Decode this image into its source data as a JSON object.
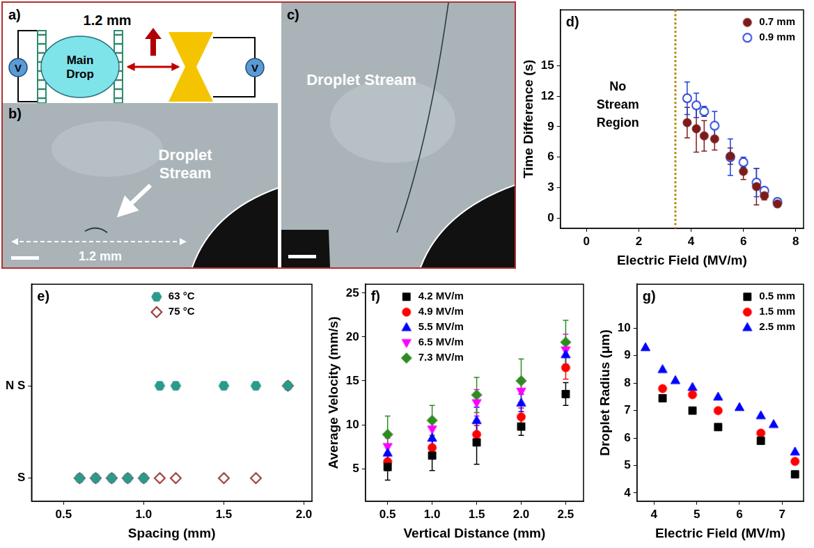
{
  "diagram": {
    "a": {
      "label": "a)",
      "drop": "Main Drop",
      "source": "V",
      "distance": "1.2 mm"
    },
    "b": {
      "label": "b)",
      "stream": "Droplet Stream",
      "gap": "1.2 mm"
    },
    "c": {
      "label": "c)",
      "stream": "Droplet Stream"
    }
  },
  "chart_data": [
    {
      "type": "scatter",
      "title": "d)",
      "x_label": "Electric Field (MV/m)",
      "y_label": "Time Difference (s)",
      "xlim": [
        -1,
        8.3
      ],
      "xticks": [
        0,
        2,
        4,
        6,
        8
      ],
      "ylim": [
        -1,
        20.5
      ],
      "yticks": [
        0,
        3,
        6,
        9,
        12,
        15
      ],
      "grid": false,
      "legend": "top-right",
      "annotations": [
        {
          "text": "No Stream Region",
          "x": 3.4
        }
      ],
      "series": [
        {
          "name": "0.7 mm",
          "color": "#7b1c1c",
          "marker": "circle",
          "x": [
            3.85,
            4.2,
            4.5,
            4.9,
            5.5,
            6.0,
            6.5,
            6.8,
            7.3
          ],
          "values": [
            9.4,
            8.8,
            8.1,
            7.8,
            6.1,
            4.6,
            3.1,
            2.2,
            1.4
          ],
          "errors": [
            1.5,
            2.3,
            1.5,
            1.1,
            0.8,
            0.8,
            1.8,
            0.4,
            0.3
          ]
        },
        {
          "name": "0.9 mm",
          "color": "#1f3fd8",
          "marker": "open_circle",
          "x": [
            3.85,
            4.2,
            4.5,
            4.9,
            5.5,
            6.0,
            6.5,
            6.8,
            7.3
          ],
          "values": [
            11.8,
            11.1,
            10.5,
            9.1,
            6.0,
            5.5,
            3.5,
            2.7,
            1.6
          ],
          "errors": [
            1.6,
            1.2,
            0.5,
            1.4,
            1.8,
            0.5,
            1.4,
            0.3,
            0.3
          ]
        }
      ]
    },
    {
      "type": "scatter",
      "title": "e)",
      "x_label": "Spacing (mm)",
      "xlim": [
        0.3,
        2.05
      ],
      "xticks": [
        0.5,
        {
          "value": 1,
          "label": "1.0"
        },
        1.5,
        {
          "value": 2,
          "label": "2.0"
        }
      ],
      "ylim": [
        -0.25,
        2.1
      ],
      "yticks": [
        {
          "value": 0,
          "label": "S"
        },
        {
          "value": 1,
          "label": "N S"
        }
      ],
      "grid": false,
      "legend": "top",
      "series": [
        {
          "name": "63 °C",
          "color": "#2b9a8c",
          "marker": "hexagon",
          "x": [
            0.6,
            0.7,
            0.8,
            0.9,
            1.0,
            1.1,
            1.2,
            1.5,
            1.7,
            1.9
          ],
          "values": [
            0,
            0,
            0,
            0,
            0,
            1,
            1,
            1,
            1,
            1
          ]
        },
        {
          "name": "75 °C",
          "color": "#8b2020",
          "marker": "open_diamond",
          "x": [
            0.6,
            0.7,
            0.8,
            0.9,
            1.0,
            1.1,
            1.2,
            1.5,
            1.7,
            1.9
          ],
          "values": [
            0,
            0,
            0,
            0,
            0,
            0,
            0,
            0,
            0,
            1
          ]
        }
      ]
    },
    {
      "type": "scatter",
      "title": "f)",
      "x_label": "Vertical Distance (mm)",
      "y_label": "Average Velocity (mm/s)",
      "xlim": [
        0.25,
        2.7
      ],
      "xticks": [
        0.5,
        {
          "value": 1,
          "label": "1.0"
        },
        1.5,
        {
          "value": 2,
          "label": "2.0"
        },
        2.5
      ],
      "ylim": [
        1.3,
        26
      ],
      "yticks": [
        5,
        10,
        15,
        20,
        25
      ],
      "grid": false,
      "legend": "top-left",
      "series": [
        {
          "name": "4.2 MV/m",
          "color": "#000000",
          "marker": "square",
          "x": [
            0.5,
            1.0,
            1.5,
            2.0,
            2.5
          ],
          "values": [
            5.2,
            6.5,
            8.0,
            9.8,
            13.5
          ],
          "errors": [
            1.5,
            1.7,
            2.5,
            1.0,
            1.3
          ]
        },
        {
          "name": "4.9 MV/m",
          "color": "#ff0000",
          "marker": "circle",
          "x": [
            0.5,
            1.0,
            1.5,
            2.0,
            2.5
          ],
          "values": [
            5.8,
            7.4,
            8.9,
            10.9,
            16.5
          ],
          "errors": [
            1.0,
            1.0,
            1.0,
            1.0,
            1.3
          ]
        },
        {
          "name": "5.5 MV/m",
          "color": "#0000ff",
          "marker": "triangle",
          "x": [
            0.5,
            1.0,
            1.5,
            2.0,
            2.5
          ],
          "values": [
            6.8,
            8.5,
            10.5,
            12.5,
            18.0
          ],
          "errors": [
            1.0,
            1.2,
            1.5,
            1.0,
            1.5
          ]
        },
        {
          "name": "6.5 MV/m",
          "color": "#ff00ff",
          "marker": "down_triangle",
          "x": [
            0.5,
            1.0,
            1.5,
            2.0,
            2.5
          ],
          "values": [
            7.5,
            9.5,
            12.5,
            13.8,
            18.5
          ],
          "errors": [
            1.0,
            1.2,
            1.5,
            1.5,
            1.8
          ]
        },
        {
          "name": "7.3 MV/m",
          "color": "#2e8b22",
          "marker": "diamond",
          "x": [
            0.5,
            1.0,
            1.5,
            2.0,
            2.5
          ],
          "values": [
            8.9,
            10.5,
            13.4,
            15.0,
            19.4
          ],
          "errors": [
            2.1,
            1.7,
            2.0,
            2.5,
            2.5
          ]
        }
      ]
    },
    {
      "type": "scatter",
      "title": "g)",
      "x_label": "Electric Field (MV/m)",
      "y_label": "Droplet Radius (μm)",
      "xlim": [
        3.6,
        7.5
      ],
      "xticks": [
        4,
        5,
        6,
        7
      ],
      "ylim": [
        3.7,
        11.6
      ],
      "yticks": [
        4,
        5,
        6,
        7,
        8,
        9,
        10
      ],
      "grid": false,
      "legend": "top-right",
      "series": [
        {
          "name": "0.5 mm",
          "color": "#000000",
          "marker": "square",
          "x": [
            4.2,
            4.9,
            5.5,
            6.5,
            7.3
          ],
          "values": [
            7.45,
            7.0,
            6.4,
            5.9,
            4.68
          ]
        },
        {
          "name": "1.5 mm",
          "color": "#ff0000",
          "marker": "circle",
          "x": [
            4.2,
            4.9,
            5.5,
            6.5,
            7.3
          ],
          "values": [
            7.8,
            7.58,
            7.0,
            6.18,
            5.15
          ]
        },
        {
          "name": "2.5 mm",
          "color": "#0000ff",
          "marker": "triangle",
          "x": [
            3.8,
            4.2,
            4.5,
            4.9,
            5.5,
            6.0,
            6.5,
            6.8,
            7.3
          ],
          "values": [
            9.3,
            8.5,
            8.1,
            7.85,
            7.5,
            7.12,
            6.82,
            6.5,
            5.5
          ]
        }
      ]
    }
  ]
}
